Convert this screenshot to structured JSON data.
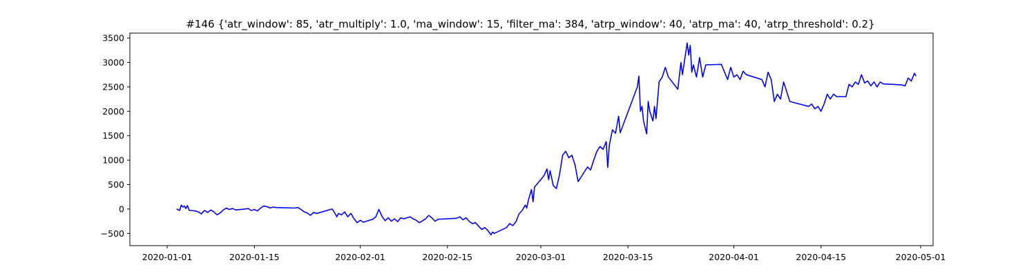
{
  "chart_data": {
    "type": "line",
    "title": "#146 {'atr_window': 85, 'atr_multiply': 1.0, 'ma_window': 15, 'filter_ma': 384, 'atrp_window': 40, 'atrp_ma': 40, 'atrp_threshold': 0.2}",
    "xlabel": "",
    "ylabel": "",
    "x_type": "date",
    "xlim": [
      "2019-12-26",
      "2020-05-03"
    ],
    "ylim": [
      -750,
      3600
    ],
    "x_ticks": [
      "2020-01-01",
      "2020-01-15",
      "2020-02-01",
      "2020-02-15",
      "2020-03-01",
      "2020-03-15",
      "2020-04-01",
      "2020-04-15",
      "2020-05-01"
    ],
    "y_ticks": [
      -500,
      0,
      500,
      1000,
      1500,
      2000,
      2500,
      3000,
      3500
    ],
    "grid": false,
    "legend": "none",
    "series": [
      {
        "color": "#0000ff",
        "points": [
          [
            "2020-01-02T12:00",
            0
          ],
          [
            "2020-01-03T00:00",
            -30
          ],
          [
            "2020-01-03T06:00",
            80
          ],
          [
            "2020-01-03T12:00",
            40
          ],
          [
            "2020-01-03T18:00",
            60
          ],
          [
            "2020-01-04T00:00",
            10
          ],
          [
            "2020-01-04T06:00",
            70
          ],
          [
            "2020-01-04T12:00",
            -20
          ],
          [
            "2020-01-04T18:00",
            -30
          ],
          [
            "2020-01-05T12:00",
            -40
          ],
          [
            "2020-01-06T00:00",
            -60
          ],
          [
            "2020-01-06T12:00",
            -100
          ],
          [
            "2020-01-06T18:00",
            -60
          ],
          [
            "2020-01-07T00:00",
            -30
          ],
          [
            "2020-01-07T12:00",
            -70
          ],
          [
            "2020-01-08T00:00",
            -20
          ],
          [
            "2020-01-08T12:00",
            -60
          ],
          [
            "2020-01-09T00:00",
            -120
          ],
          [
            "2020-01-09T12:00",
            -80
          ],
          [
            "2020-01-10T00:00",
            -20
          ],
          [
            "2020-01-10T12:00",
            20
          ],
          [
            "2020-01-11T00:00",
            -10
          ],
          [
            "2020-01-11T12:00",
            10
          ],
          [
            "2020-01-12T00:00",
            -20
          ],
          [
            "2020-01-13T12:00",
            0
          ],
          [
            "2020-01-14T00:00",
            10
          ],
          [
            "2020-01-14T12:00",
            -30
          ],
          [
            "2020-01-15T00:00",
            -10
          ],
          [
            "2020-01-15T12:00",
            -40
          ],
          [
            "2020-01-16T00:00",
            20
          ],
          [
            "2020-01-16T12:00",
            60
          ],
          [
            "2020-01-17T00:00",
            50
          ],
          [
            "2020-01-17T12:00",
            20
          ],
          [
            "2020-01-18T00:00",
            40
          ],
          [
            "2020-01-18T12:00",
            30
          ],
          [
            "2020-01-21T12:00",
            20
          ],
          [
            "2020-01-22T00:00",
            30
          ],
          [
            "2020-01-22T12:00",
            -10
          ],
          [
            "2020-01-23T00:00",
            -60
          ],
          [
            "2020-01-23T12:00",
            -80
          ],
          [
            "2020-01-24T00:00",
            -130
          ],
          [
            "2020-01-24T12:00",
            -70
          ],
          [
            "2020-01-25T00:00",
            -90
          ],
          [
            "2020-01-27T12:00",
            0
          ],
          [
            "2020-01-28T00:00",
            -100
          ],
          [
            "2020-01-28T06:00",
            -160
          ],
          [
            "2020-01-28T12:00",
            -90
          ],
          [
            "2020-01-29T00:00",
            -120
          ],
          [
            "2020-01-29T12:00",
            -60
          ],
          [
            "2020-01-30T00:00",
            -160
          ],
          [
            "2020-01-30T12:00",
            -90
          ],
          [
            "2020-01-31T00:00",
            -200
          ],
          [
            "2020-01-31T12:00",
            -280
          ],
          [
            "2020-02-01T00:00",
            -230
          ],
          [
            "2020-02-01T12:00",
            -270
          ],
          [
            "2020-02-03T00:00",
            -210
          ],
          [
            "2020-02-03T12:00",
            -160
          ],
          [
            "2020-02-04T00:00",
            -10
          ],
          [
            "2020-02-04T06:00",
            -80
          ],
          [
            "2020-02-04T12:00",
            -150
          ],
          [
            "2020-02-05T00:00",
            -240
          ],
          [
            "2020-02-05T12:00",
            -180
          ],
          [
            "2020-02-06T00:00",
            -250
          ],
          [
            "2020-02-06T12:00",
            -200
          ],
          [
            "2020-02-07T00:00",
            -260
          ],
          [
            "2020-02-07T12:00",
            -180
          ],
          [
            "2020-02-08T00:00",
            -200
          ],
          [
            "2020-02-09T00:00",
            -160
          ],
          [
            "2020-02-09T12:00",
            -200
          ],
          [
            "2020-02-10T00:00",
            -230
          ],
          [
            "2020-02-10T12:00",
            -280
          ],
          [
            "2020-02-11T00:00",
            -240
          ],
          [
            "2020-02-11T12:00",
            -200
          ],
          [
            "2020-02-12T00:00",
            -130
          ],
          [
            "2020-02-12T12:00",
            -180
          ],
          [
            "2020-02-13T00:00",
            -250
          ],
          [
            "2020-02-13T12:00",
            -210
          ],
          [
            "2020-02-16T12:00",
            -190
          ],
          [
            "2020-02-17T00:00",
            -160
          ],
          [
            "2020-02-17T12:00",
            -220
          ],
          [
            "2020-02-18T00:00",
            -180
          ],
          [
            "2020-02-18T12:00",
            -250
          ],
          [
            "2020-02-19T00:00",
            -300
          ],
          [
            "2020-02-19T12:00",
            -280
          ],
          [
            "2020-02-20T00:00",
            -350
          ],
          [
            "2020-02-20T12:00",
            -420
          ],
          [
            "2020-02-21T00:00",
            -380
          ],
          [
            "2020-02-21T12:00",
            -440
          ],
          [
            "2020-02-22T00:00",
            -530
          ],
          [
            "2020-02-22T06:00",
            -470
          ],
          [
            "2020-02-22T12:00",
            -500
          ],
          [
            "2020-02-24T12:00",
            -380
          ],
          [
            "2020-02-25T00:00",
            -300
          ],
          [
            "2020-02-25T12:00",
            -340
          ],
          [
            "2020-02-26T00:00",
            -260
          ],
          [
            "2020-02-26T12:00",
            -100
          ],
          [
            "2020-02-27T00:00",
            -30
          ],
          [
            "2020-02-27T12:00",
            80
          ],
          [
            "2020-02-27T18:00",
            20
          ],
          [
            "2020-02-28T00:00",
            180
          ],
          [
            "2020-02-28T12:00",
            400
          ],
          [
            "2020-02-28T18:00",
            150
          ],
          [
            "2020-02-29T00:00",
            450
          ],
          [
            "2020-03-01T12:00",
            680
          ],
          [
            "2020-03-02T00:00",
            820
          ],
          [
            "2020-03-02T06:00",
            600
          ],
          [
            "2020-03-02T12:00",
            780
          ],
          [
            "2020-03-03T00:00",
            480
          ],
          [
            "2020-03-03T12:00",
            420
          ],
          [
            "2020-03-04T00:00",
            700
          ],
          [
            "2020-03-04T12:00",
            1100
          ],
          [
            "2020-03-05T00:00",
            1180
          ],
          [
            "2020-03-05T12:00",
            1050
          ],
          [
            "2020-03-06T00:00",
            1100
          ],
          [
            "2020-03-06T12:00",
            900
          ],
          [
            "2020-03-07T00:00",
            560
          ],
          [
            "2020-03-08T12:00",
            860
          ],
          [
            "2020-03-09T00:00",
            800
          ],
          [
            "2020-03-09T12:00",
            1000
          ],
          [
            "2020-03-10T00:00",
            1180
          ],
          [
            "2020-03-10T12:00",
            1280
          ],
          [
            "2020-03-11T00:00",
            1220
          ],
          [
            "2020-03-11T12:00",
            1380
          ],
          [
            "2020-03-11T18:00",
            850
          ],
          [
            "2020-03-12T00:00",
            1300
          ],
          [
            "2020-03-12T12:00",
            1620
          ],
          [
            "2020-03-13T00:00",
            1550
          ],
          [
            "2020-03-13T12:00",
            1900
          ],
          [
            "2020-03-13T18:00",
            1560
          ],
          [
            "2020-03-16T12:00",
            2500
          ],
          [
            "2020-03-16T18:00",
            2720
          ],
          [
            "2020-03-17T00:00",
            2000
          ],
          [
            "2020-03-17T06:00",
            2100
          ],
          [
            "2020-03-17T12:00",
            1800
          ],
          [
            "2020-03-18T00:00",
            1540
          ],
          [
            "2020-03-18T06:00",
            2200
          ],
          [
            "2020-03-18T12:00",
            2000
          ],
          [
            "2020-03-19T00:00",
            1800
          ],
          [
            "2020-03-19T06:00",
            2100
          ],
          [
            "2020-03-19T12:00",
            1850
          ],
          [
            "2020-03-20T00:00",
            2600
          ],
          [
            "2020-03-20T12:00",
            2700
          ],
          [
            "2020-03-21T00:00",
            2900
          ],
          [
            "2020-03-21T12:00",
            2700
          ],
          [
            "2020-03-23T00:00",
            2450
          ],
          [
            "2020-03-23T12:00",
            3000
          ],
          [
            "2020-03-23T18:00",
            2750
          ],
          [
            "2020-03-24T12:00",
            3400
          ],
          [
            "2020-03-24T18:00",
            3150
          ],
          [
            "2020-03-25T00:00",
            3350
          ],
          [
            "2020-03-25T06:00",
            2800
          ],
          [
            "2020-03-25T12:00",
            2950
          ],
          [
            "2020-03-26T00:00",
            2700
          ],
          [
            "2020-03-26T12:00",
            3100
          ],
          [
            "2020-03-27T00:00",
            2700
          ],
          [
            "2020-03-27T12:00",
            2950
          ],
          [
            "2020-03-30T00:00",
            2960
          ],
          [
            "2020-03-30T12:00",
            2800
          ],
          [
            "2020-03-31T00:00",
            2650
          ],
          [
            "2020-03-31T12:00",
            2900
          ],
          [
            "2020-04-01T00:00",
            2700
          ],
          [
            "2020-04-01T12:00",
            2750
          ],
          [
            "2020-04-02T00:00",
            2650
          ],
          [
            "2020-04-02T12:00",
            2820
          ],
          [
            "2020-04-03T00:00",
            2750
          ],
          [
            "2020-04-05T12:00",
            2650
          ],
          [
            "2020-04-06T00:00",
            2500
          ],
          [
            "2020-04-06T12:00",
            2800
          ],
          [
            "2020-04-07T00:00",
            2650
          ],
          [
            "2020-04-07T12:00",
            2200
          ],
          [
            "2020-04-08T00:00",
            2350
          ],
          [
            "2020-04-08T12:00",
            2250
          ],
          [
            "2020-04-09T00:00",
            2600
          ],
          [
            "2020-04-09T12:00",
            2400
          ],
          [
            "2020-04-10T00:00",
            2200
          ],
          [
            "2020-04-13T00:00",
            2100
          ],
          [
            "2020-04-13T12:00",
            2150
          ],
          [
            "2020-04-14T00:00",
            2050
          ],
          [
            "2020-04-14T12:00",
            2100
          ],
          [
            "2020-04-15T00:00",
            2000
          ],
          [
            "2020-04-15T12:00",
            2150
          ],
          [
            "2020-04-16T00:00",
            2350
          ],
          [
            "2020-04-16T12:00",
            2250
          ],
          [
            "2020-04-17T00:00",
            2350
          ],
          [
            "2020-04-17T12:00",
            2300
          ],
          [
            "2020-04-19T00:00",
            2300
          ],
          [
            "2020-04-19T12:00",
            2550
          ],
          [
            "2020-04-20T00:00",
            2500
          ],
          [
            "2020-04-20T12:00",
            2600
          ],
          [
            "2020-04-21T00:00",
            2550
          ],
          [
            "2020-04-21T12:00",
            2750
          ],
          [
            "2020-04-22T00:00",
            2580
          ],
          [
            "2020-04-22T12:00",
            2620
          ],
          [
            "2020-04-23T00:00",
            2520
          ],
          [
            "2020-04-23T12:00",
            2600
          ],
          [
            "2020-04-24T00:00",
            2500
          ],
          [
            "2020-04-24T12:00",
            2600
          ],
          [
            "2020-04-25T00:00",
            2560
          ],
          [
            "2020-04-28T00:00",
            2540
          ],
          [
            "2020-04-28T12:00",
            2520
          ],
          [
            "2020-04-29T00:00",
            2680
          ],
          [
            "2020-04-29T12:00",
            2620
          ],
          [
            "2020-04-30T00:00",
            2780
          ],
          [
            "2020-04-30T06:00",
            2720
          ]
        ]
      }
    ]
  }
}
